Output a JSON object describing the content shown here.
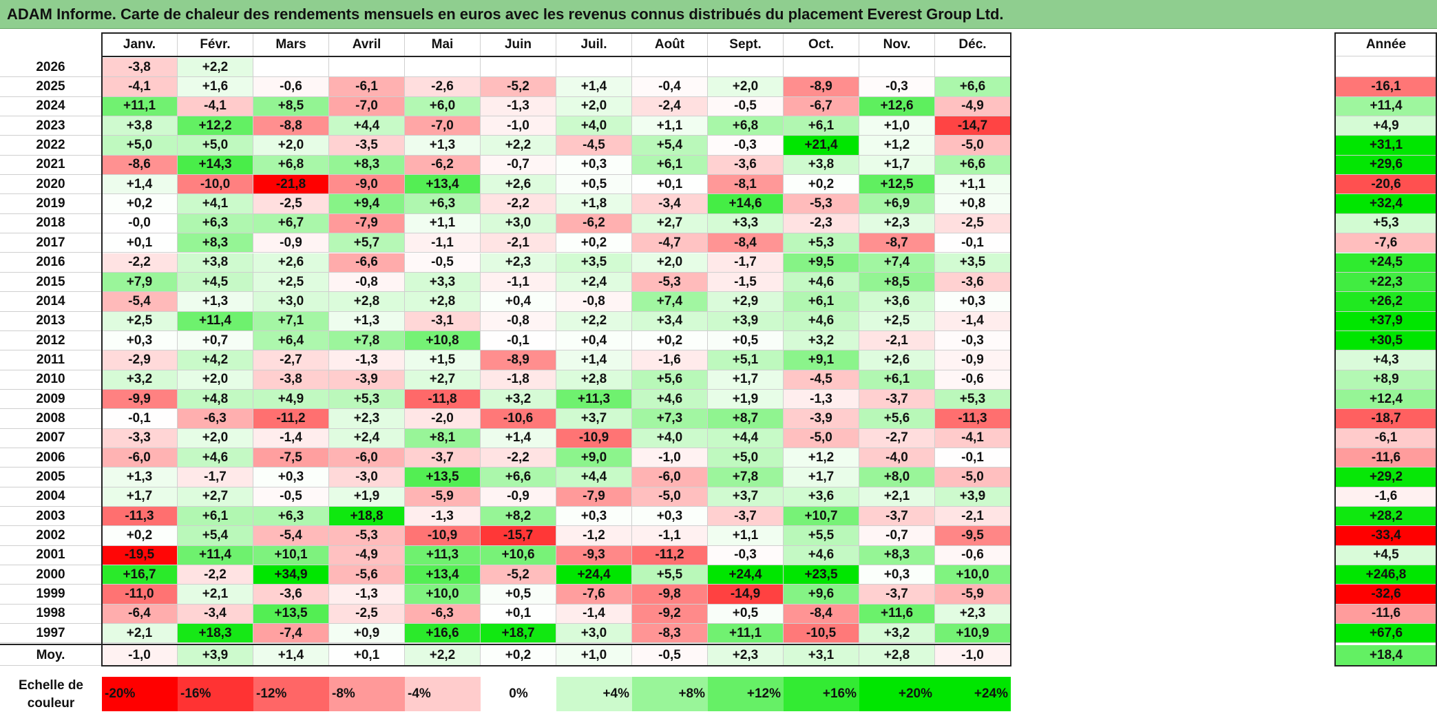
{
  "title": "ADAM Informe. Carte de chaleur des rendements mensuels en euros avec les revenus connus distribués du placement Everest Group Ltd.",
  "chart_data": {
    "type": "heatmap",
    "columns": [
      "Janv.",
      "Févr.",
      "Mars",
      "Avril",
      "Mai",
      "Juin",
      "Juil.",
      "Août",
      "Sept.",
      "Oct.",
      "Nov.",
      "Déc."
    ],
    "annual_label": "Année",
    "average_label": "Moy.",
    "rows": [
      {
        "year": "2026",
        "values": [
          "-3,8",
          "+2,2",
          "",
          "",
          "",
          "",
          "",
          "",
          "",
          "",
          "",
          ""
        ],
        "annual": ""
      },
      {
        "year": "2025",
        "values": [
          "-4,1",
          "+1,6",
          "-0,6",
          "-6,1",
          "-2,6",
          "-5,2",
          "+1,4",
          "-0,4",
          "+2,0",
          "-8,9",
          "-0,3",
          "+6,6"
        ],
        "annual": "-16,1"
      },
      {
        "year": "2024",
        "values": [
          "+11,1",
          "-4,1",
          "+8,5",
          "-7,0",
          "+6,0",
          "-1,3",
          "+2,0",
          "-2,4",
          "-0,5",
          "-6,7",
          "+12,6",
          "-4,9"
        ],
        "annual": "+11,4"
      },
      {
        "year": "2023",
        "values": [
          "+3,8",
          "+12,2",
          "-8,8",
          "+4,4",
          "-7,0",
          "-1,0",
          "+4,0",
          "+1,1",
          "+6,8",
          "+6,1",
          "+1,0",
          "-14,7"
        ],
        "annual": "+4,9"
      },
      {
        "year": "2022",
        "values": [
          "+5,0",
          "+5,0",
          "+2,0",
          "-3,5",
          "+1,3",
          "+2,2",
          "-4,5",
          "+5,4",
          "-0,3",
          "+21,4",
          "+1,2",
          "-5,0"
        ],
        "annual": "+31,1"
      },
      {
        "year": "2021",
        "values": [
          "-8,6",
          "+14,3",
          "+6,8",
          "+8,3",
          "-6,2",
          "-0,7",
          "+0,3",
          "+6,1",
          "-3,6",
          "+3,8",
          "+1,7",
          "+6,6"
        ],
        "annual": "+29,6"
      },
      {
        "year": "2020",
        "values": [
          "+1,4",
          "-10,0",
          "-21,8",
          "-9,0",
          "+13,4",
          "+2,6",
          "+0,5",
          "+0,1",
          "-8,1",
          "+0,2",
          "+12,5",
          "+1,1"
        ],
        "annual": "-20,6"
      },
      {
        "year": "2019",
        "values": [
          "+0,2",
          "+4,1",
          "-2,5",
          "+9,4",
          "+6,3",
          "-2,2",
          "+1,8",
          "-3,4",
          "+14,6",
          "-5,3",
          "+6,9",
          "+0,8"
        ],
        "annual": "+32,4"
      },
      {
        "year": "2018",
        "values": [
          "-0,0",
          "+6,3",
          "+6,7",
          "-7,9",
          "+1,1",
          "+3,0",
          "-6,2",
          "+2,7",
          "+3,3",
          "-2,3",
          "+2,3",
          "-2,5"
        ],
        "annual": "+5,3"
      },
      {
        "year": "2017",
        "values": [
          "+0,1",
          "+8,3",
          "-0,9",
          "+5,7",
          "-1,1",
          "-2,1",
          "+0,2",
          "-4,7",
          "-8,4",
          "+5,3",
          "-8,7",
          "-0,1"
        ],
        "annual": "-7,6"
      },
      {
        "year": "2016",
        "values": [
          "-2,2",
          "+3,8",
          "+2,6",
          "-6,6",
          "-0,5",
          "+2,3",
          "+3,5",
          "+2,0",
          "-1,7",
          "+9,5",
          "+7,4",
          "+3,5"
        ],
        "annual": "+24,5"
      },
      {
        "year": "2015",
        "values": [
          "+7,9",
          "+4,5",
          "+2,5",
          "-0,8",
          "+3,3",
          "-1,1",
          "+2,4",
          "-5,3",
          "-1,5",
          "+4,6",
          "+8,5",
          "-3,6"
        ],
        "annual": "+22,3"
      },
      {
        "year": "2014",
        "values": [
          "-5,4",
          "+1,3",
          "+3,0",
          "+2,8",
          "+2,8",
          "+0,4",
          "-0,8",
          "+7,4",
          "+2,9",
          "+6,1",
          "+3,6",
          "+0,3"
        ],
        "annual": "+26,2"
      },
      {
        "year": "2013",
        "values": [
          "+2,5",
          "+11,4",
          "+7,1",
          "+1,3",
          "-3,1",
          "-0,8",
          "+2,2",
          "+3,4",
          "+3,9",
          "+4,6",
          "+2,5",
          "-1,4"
        ],
        "annual": "+37,9"
      },
      {
        "year": "2012",
        "values": [
          "+0,3",
          "+0,7",
          "+6,4",
          "+7,8",
          "+10,8",
          "-0,1",
          "+0,4",
          "+0,2",
          "+0,5",
          "+3,2",
          "-2,1",
          "-0,3"
        ],
        "annual": "+30,5"
      },
      {
        "year": "2011",
        "values": [
          "-2,9",
          "+4,2",
          "-2,7",
          "-1,3",
          "+1,5",
          "-8,9",
          "+1,4",
          "-1,6",
          "+5,1",
          "+9,1",
          "+2,6",
          "-0,9"
        ],
        "annual": "+4,3"
      },
      {
        "year": "2010",
        "values": [
          "+3,2",
          "+2,0",
          "-3,8",
          "-3,9",
          "+2,7",
          "-1,8",
          "+2,8",
          "+5,6",
          "+1,7",
          "-4,5",
          "+6,1",
          "-0,6"
        ],
        "annual": "+8,9"
      },
      {
        "year": "2009",
        "values": [
          "-9,9",
          "+4,8",
          "+4,9",
          "+5,3",
          "-11,8",
          "+3,2",
          "+11,3",
          "+4,6",
          "+1,9",
          "-1,3",
          "-3,7",
          "+5,3"
        ],
        "annual": "+12,4"
      },
      {
        "year": "2008",
        "values": [
          "-0,1",
          "-6,3",
          "-11,2",
          "+2,3",
          "-2,0",
          "-10,6",
          "+3,7",
          "+7,3",
          "+8,7",
          "-3,9",
          "+5,6",
          "-11,3"
        ],
        "annual": "-18,7"
      },
      {
        "year": "2007",
        "values": [
          "-3,3",
          "+2,0",
          "-1,4",
          "+2,4",
          "+8,1",
          "+1,4",
          "-10,9",
          "+4,0",
          "+4,4",
          "-5,0",
          "-2,7",
          "-4,1"
        ],
        "annual": "-6,1"
      },
      {
        "year": "2006",
        "values": [
          "-6,0",
          "+4,6",
          "-7,5",
          "-6,0",
          "-3,7",
          "-2,2",
          "+9,0",
          "-1,0",
          "+5,0",
          "+1,2",
          "-4,0",
          "-0,1"
        ],
        "annual": "-11,6"
      },
      {
        "year": "2005",
        "values": [
          "+1,3",
          "-1,7",
          "+0,3",
          "-3,0",
          "+13,5",
          "+6,6",
          "+4,4",
          "-6,0",
          "+7,8",
          "+1,7",
          "+8,0",
          "-5,0"
        ],
        "annual": "+29,2"
      },
      {
        "year": "2004",
        "values": [
          "+1,7",
          "+2,7",
          "-0,5",
          "+1,9",
          "-5,9",
          "-0,9",
          "-7,9",
          "-5,0",
          "+3,7",
          "+3,6",
          "+2,1",
          "+3,9"
        ],
        "annual": "-1,6"
      },
      {
        "year": "2003",
        "values": [
          "-11,3",
          "+6,1",
          "+6,3",
          "+18,8",
          "-1,3",
          "+8,2",
          "+0,3",
          "+0,3",
          "-3,7",
          "+10,7",
          "-3,7",
          "-2,1"
        ],
        "annual": "+28,2"
      },
      {
        "year": "2002",
        "values": [
          "+0,2",
          "+5,4",
          "-5,4",
          "-5,3",
          "-10,9",
          "-15,7",
          "-1,2",
          "-1,1",
          "+1,1",
          "+5,5",
          "-0,7",
          "-9,5"
        ],
        "annual": "-33,4"
      },
      {
        "year": "2001",
        "values": [
          "-19,5",
          "+11,4",
          "+10,1",
          "-4,9",
          "+11,3",
          "+10,6",
          "-9,3",
          "-11,2",
          "-0,3",
          "+4,6",
          "+8,3",
          "-0,6"
        ],
        "annual": "+4,5"
      },
      {
        "year": "2000",
        "values": [
          "+16,7",
          "-2,2",
          "+34,9",
          "-5,6",
          "+13,4",
          "-5,2",
          "+24,4",
          "+5,5",
          "+24,4",
          "+23,5",
          "+0,3",
          "+10,0"
        ],
        "annual": "+246,8"
      },
      {
        "year": "1999",
        "values": [
          "-11,0",
          "+2,1",
          "-3,6",
          "-1,3",
          "+10,0",
          "+0,5",
          "-7,6",
          "-9,8",
          "-14,9",
          "+9,6",
          "-3,7",
          "-5,9"
        ],
        "annual": "-32,6"
      },
      {
        "year": "1998",
        "values": [
          "-6,4",
          "-3,4",
          "+13,5",
          "-2,5",
          "-6,3",
          "+0,1",
          "-1,4",
          "-9,2",
          "+0,5",
          "-8,4",
          "+11,6",
          "+2,3"
        ],
        "annual": "-11,6"
      },
      {
        "year": "1997",
        "values": [
          "+2,1",
          "+18,3",
          "-7,4",
          "+0,9",
          "+16,6",
          "+18,7",
          "+3,0",
          "-8,3",
          "+11,1",
          "-10,5",
          "+3,2",
          "+10,9"
        ],
        "annual": "+67,6"
      }
    ],
    "average": {
      "values": [
        "-1,0",
        "+3,9",
        "+1,4",
        "+0,1",
        "+2,2",
        "+0,2",
        "+1,0",
        "-0,5",
        "+2,3",
        "+3,1",
        "+2,8",
        "-1,0"
      ],
      "annual": "+18,4"
    },
    "scale_label": [
      "Echelle de",
      "couleur"
    ],
    "scale": [
      {
        "label": "-20%",
        "value": -20
      },
      {
        "label": "-16%",
        "value": -16
      },
      {
        "label": "-12%",
        "value": -12
      },
      {
        "label": "-8%",
        "value": -8
      },
      {
        "label": "-4%",
        "value": -4
      },
      {
        "label": "0%",
        "value": 0
      },
      {
        "label": "+4%",
        "value": 4
      },
      {
        "label": "+8%",
        "value": 8
      },
      {
        "label": "+12%",
        "value": 12
      },
      {
        "label": "+16%",
        "value": 16
      },
      {
        "label": "+20%",
        "value": 20
      },
      {
        "label": "+24%",
        "value": 24
      }
    ],
    "colors": {
      "negative_max": "#ff0000",
      "zero": "#ffffff",
      "positive_max": "#00e600"
    }
  }
}
